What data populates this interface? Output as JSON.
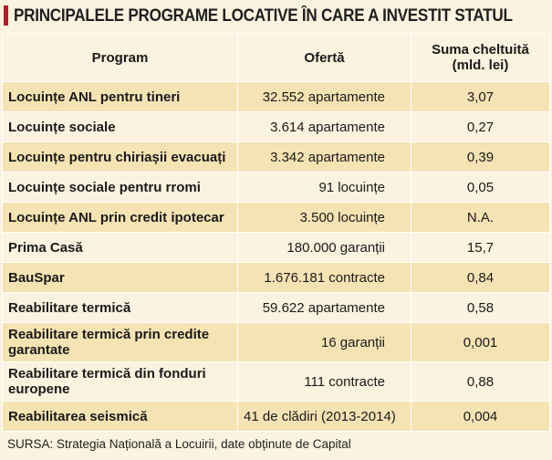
{
  "title": "PRINCIPALELE PROGRAME LOCATIVE ÎN CARE A INVESTIT STATUL",
  "columns": {
    "program": "Program",
    "oferta": "Ofertă",
    "suma_line1": "Suma cheltuită",
    "suma_line2": "(mld. lei)"
  },
  "rows": [
    {
      "program": "Locuințe ANL pentru tineri",
      "oferta": "32.552 apartamente",
      "suma": "3,07"
    },
    {
      "program": "Locuințe sociale",
      "oferta": "3.614 apartamente",
      "suma": "0,27"
    },
    {
      "program": "Locuințe pentru chiriașii evacuați",
      "oferta": "3.342 apartamente",
      "suma": "0,39"
    },
    {
      "program": "Locuințe sociale pentru rromi",
      "oferta": "91 locuințe",
      "suma": "0,05"
    },
    {
      "program": "Locuințe ANL prin credit ipotecar",
      "oferta": "3.500 locuințe",
      "suma": "N.A."
    },
    {
      "program": "Prima Casă",
      "oferta": "180.000 garanții",
      "suma": "15,7"
    },
    {
      "program": "BauSpar",
      "oferta": "1.676.181 contracte",
      "suma": "0,84"
    },
    {
      "program": "Reabilitare termică",
      "oferta": "59.622 apartamente",
      "suma": "0,58"
    },
    {
      "program": "Reabilitare termică prin credite garantate",
      "oferta": "16 garanții",
      "suma": "0,001"
    },
    {
      "program": "Reabilitare termică din fonduri europene",
      "oferta": "111 contracte",
      "suma": "0,88"
    },
    {
      "program": "Reabilitarea seismică",
      "oferta": "41 de clădiri (2013-2014)",
      "suma": "0,004"
    }
  ],
  "source": "SURSA: Strategia Națională a Locuirii, date obținute de Capital",
  "colors": {
    "accent": "#b61d2a",
    "row_light": "#fbf3df",
    "row_dark": "#f6e3b4"
  }
}
